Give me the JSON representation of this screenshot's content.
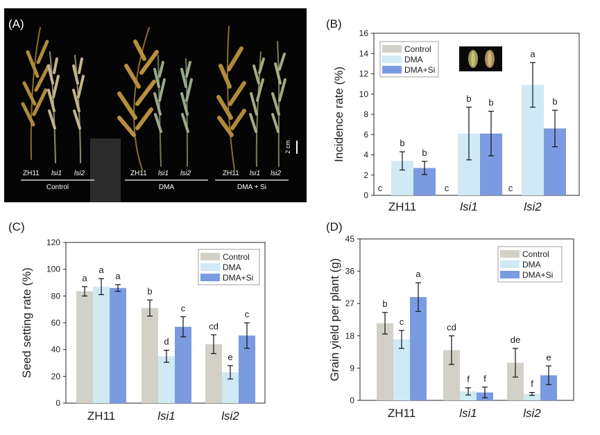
{
  "panel_a": {
    "label": "(A)",
    "scale_bar": "2 cm",
    "groups": [
      {
        "name": "Control",
        "lines": [
          "ZH11",
          "lsi1",
          "lsi2"
        ]
      },
      {
        "name": "DMA",
        "lines": [
          "ZH11",
          "lsi1",
          "lsi2"
        ]
      },
      {
        "name": "DMA + Si",
        "lines": [
          "ZH11",
          "lsi1",
          "lsi2"
        ]
      }
    ]
  },
  "colors": {
    "control": "#d3d0c7",
    "dma": "#cfeaf4",
    "dma_si": "#7b9be0"
  },
  "chart_data": [
    {
      "type": "bar",
      "panel": "(B)",
      "title": "",
      "xlabel": "",
      "ylabel": "Incidence rate (%)",
      "ylim": [
        0,
        16
      ],
      "yticks": [
        0,
        2,
        4,
        6,
        8,
        10,
        12,
        14,
        16
      ],
      "categories": [
        "ZH11",
        "lsi1",
        "lsi2"
      ],
      "legend": {
        "position": "top-left",
        "entries": [
          "Control",
          "DMA",
          "DMA+Si"
        ]
      },
      "series": [
        {
          "name": "Control",
          "values": [
            0,
            0,
            0
          ],
          "errors": [
            0,
            0,
            0
          ],
          "letters": [
            "c",
            "c",
            "c"
          ]
        },
        {
          "name": "DMA",
          "values": [
            3.4,
            6.1,
            10.9
          ],
          "errors": [
            0.9,
            2.6,
            2.2
          ],
          "letters": [
            "b",
            "b",
            "a"
          ]
        },
        {
          "name": "DMA+Si",
          "values": [
            2.7,
            6.1,
            6.6
          ],
          "errors": [
            0.65,
            2.2,
            1.8
          ],
          "letters": [
            "b",
            "b",
            "b"
          ]
        }
      ]
    },
    {
      "type": "bar",
      "panel": "(C)",
      "title": "",
      "xlabel": "",
      "ylabel": "Seed setting rate (%)",
      "ylim": [
        0,
        120
      ],
      "yticks": [
        0,
        20,
        40,
        60,
        80,
        100,
        120
      ],
      "categories": [
        "ZH11",
        "lsi1",
        "lsi2"
      ],
      "legend": {
        "position": "top-right",
        "entries": [
          "Control",
          "DMA",
          "DMA+Si"
        ]
      },
      "series": [
        {
          "name": "Control",
          "values": [
            83.5,
            71,
            44
          ],
          "errors": [
            3.5,
            6,
            7
          ],
          "letters": [
            "a",
            "b",
            "cd"
          ]
        },
        {
          "name": "DMA",
          "values": [
            87,
            35,
            23
          ],
          "errors": [
            6,
            4.5,
            5
          ],
          "letters": [
            "a",
            "d",
            "e"
          ]
        },
        {
          "name": "DMA+Si",
          "values": [
            86,
            57,
            50.5
          ],
          "errors": [
            2.5,
            7.5,
            9.5
          ],
          "letters": [
            "a",
            "c",
            "c"
          ]
        }
      ]
    },
    {
      "type": "bar",
      "panel": "(D)",
      "title": "",
      "xlabel": "",
      "ylabel": "Grain yield per plant (g)",
      "ylim": [
        0,
        45
      ],
      "yticks": [
        0,
        9,
        18,
        27,
        36,
        45
      ],
      "categories": [
        "ZH11",
        "lsi1",
        "lsi2"
      ],
      "legend": {
        "position": "top-right",
        "entries": [
          "Control",
          "DMA",
          "DMA+Si"
        ]
      },
      "series": [
        {
          "name": "Control",
          "values": [
            21.5,
            14,
            10.5
          ],
          "errors": [
            3,
            4,
            4
          ],
          "letters": [
            "b",
            "cd",
            "de"
          ]
        },
        {
          "name": "DMA",
          "values": [
            17,
            2.5,
            1.8
          ],
          "errors": [
            2.5,
            1,
            0.4
          ],
          "letters": [
            "c",
            "f",
            "f"
          ]
        },
        {
          "name": "DMA+Si",
          "values": [
            28.8,
            2.2,
            7
          ],
          "errors": [
            4,
            1.5,
            2.6
          ],
          "letters": [
            "a",
            "f",
            "e"
          ]
        }
      ]
    }
  ]
}
